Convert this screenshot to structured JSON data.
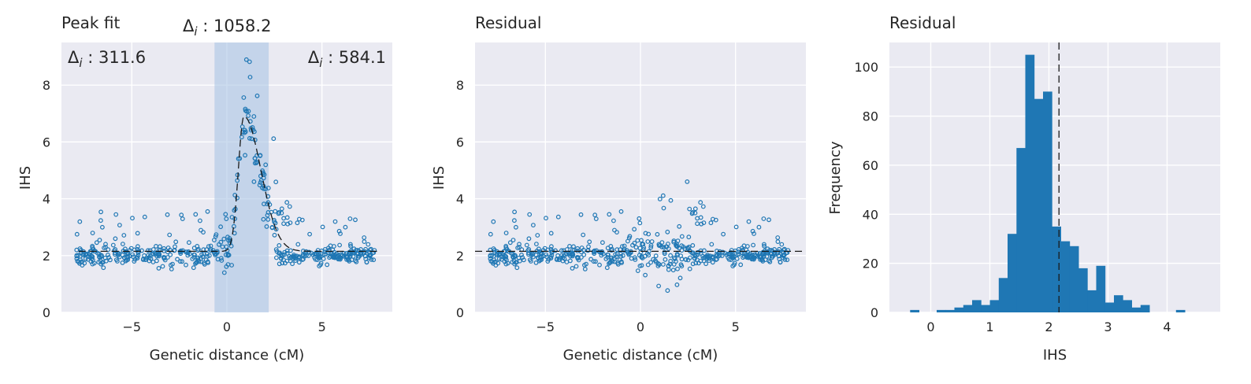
{
  "chart_data": [
    {
      "type": "scatter",
      "title": "Peak fit",
      "xlabel": "Genetic distance (cM)",
      "ylabel": "IHS",
      "xlim": [
        -8.7,
        8.7
      ],
      "ylim": [
        0,
        9.5
      ],
      "xticks": [
        -5,
        0,
        5
      ],
      "yticks": [
        0,
        2,
        4,
        6,
        8
      ],
      "grid": true,
      "highlight_band": {
        "x_start": -0.65,
        "x_end": 2.2
      },
      "annotations": [
        {
          "text": "Δi : 311.6",
          "position": "top-left"
        },
        {
          "text": "Δi : 1058.2",
          "position": "above-band"
        },
        {
          "text": "Δi : 584.1",
          "position": "top-right"
        }
      ],
      "fit_curve": {
        "baseline": 2.15,
        "peak_x": 0.9,
        "peak_y": 6.9,
        "shape": "dashed peak"
      },
      "series": [
        {
          "points_approx": "~600 open-circle points: baseline ~2 (range 1.4–3.7) across -8 to 8 cM; peak rising to ~9.1 near 0.6 cM inside the band"
        }
      ]
    },
    {
      "type": "scatter",
      "title": "Residual",
      "xlabel": "Genetic distance (cM)",
      "ylabel": "IHS",
      "xlim": [
        -8.7,
        8.7
      ],
      "ylim": [
        0,
        9.5
      ],
      "xticks": [
        -5,
        0,
        5
      ],
      "yticks": [
        0,
        2,
        4,
        6,
        8
      ],
      "grid": true,
      "reference_line": 2.15,
      "series": [
        {
          "points_approx": "~600 open-circle residual points centred near 2 (range 0.1–4.6)"
        }
      ]
    },
    {
      "type": "bar",
      "title": "Residual",
      "xlabel": "IHS",
      "ylabel": "Frequency",
      "xlim": [
        -0.7,
        4.9
      ],
      "ylim": [
        0,
        110
      ],
      "xticks": [
        0,
        1,
        2,
        3,
        4
      ],
      "yticks": [
        0,
        20,
        40,
        60,
        80,
        100
      ],
      "grid": true,
      "reference_line": 2.17,
      "bin_edges": [
        -0.35,
        -0.2,
        -0.05,
        0.1,
        0.25,
        0.4,
        0.55,
        0.7,
        0.85,
        1.0,
        1.15,
        1.3,
        1.45,
        1.6,
        1.75,
        1.9,
        2.05,
        2.2,
        2.35,
        2.5,
        2.65,
        2.8,
        2.95,
        3.1,
        3.25,
        3.4,
        3.55,
        3.7,
        3.85,
        4.0,
        4.15,
        4.3,
        4.45,
        4.6,
        4.75
      ],
      "values": [
        1,
        0,
        0,
        1,
        1,
        2,
        3,
        5,
        3,
        5,
        14,
        32,
        67,
        105,
        87,
        90,
        35,
        29,
        27,
        18,
        9,
        19,
        4,
        7,
        5,
        2,
        3,
        0,
        0,
        0,
        1,
        0,
        0,
        0
      ]
    }
  ]
}
